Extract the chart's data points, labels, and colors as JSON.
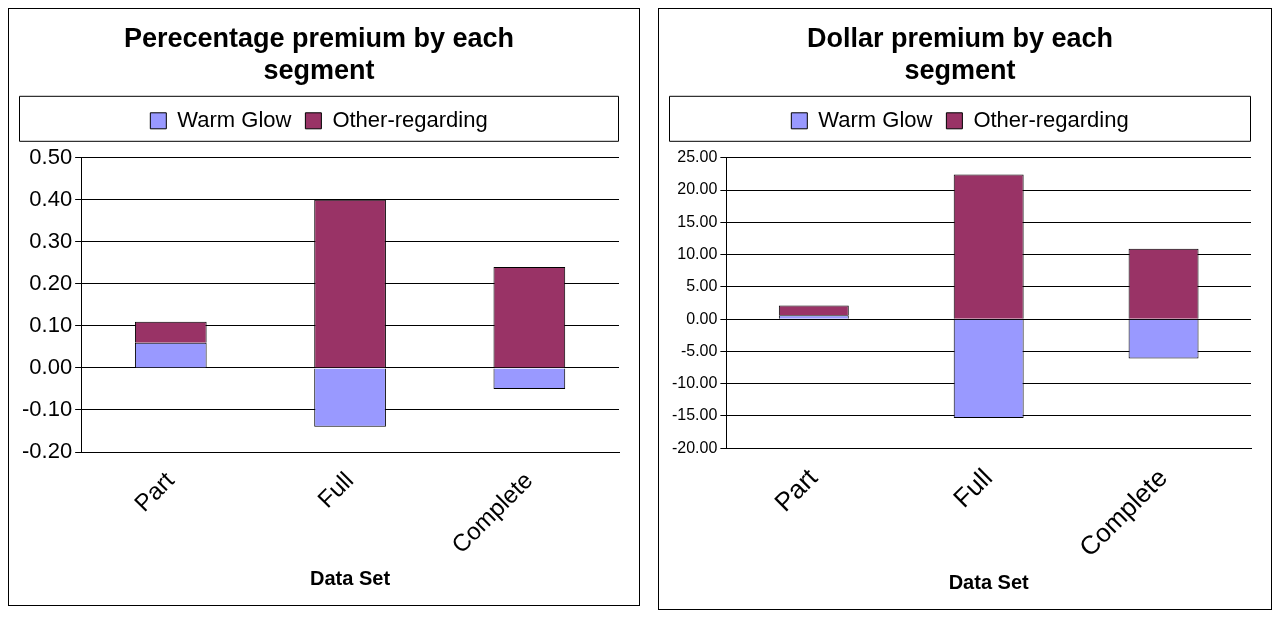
{
  "chart_data": [
    {
      "type": "bar",
      "title": "Perecentage premium by each segment",
      "xlabel": "Data Set",
      "categories": [
        "Part",
        "Full",
        "Complete"
      ],
      "stacked": true,
      "legend": "top",
      "grid": "y",
      "series": [
        {
          "name": "Warm Glow",
          "color": "#9999ff",
          "values": [
            0.06,
            -0.14,
            -0.05
          ]
        },
        {
          "name": "Other-regarding",
          "color": "#993366",
          "values": [
            0.05,
            0.4,
            0.24
          ]
        }
      ],
      "ylim": [
        -0.2,
        0.5
      ],
      "yticks": [
        {
          "value": -0.2,
          "label": "-0.20"
        },
        {
          "value": -0.1,
          "label": "-0.10"
        },
        {
          "value": 0,
          "label": "0.00"
        },
        {
          "value": 0.1,
          "label": "0.10"
        },
        {
          "value": 0.2,
          "label": "0.20"
        },
        {
          "value": 0.3,
          "label": "0.30"
        },
        {
          "value": 0.4,
          "label": "0.40"
        },
        {
          "value": 0.5,
          "label": "0.50"
        }
      ]
    },
    {
      "type": "bar",
      "title": "Dollar premium by each segment",
      "xlabel": "Data Set",
      "categories": [
        "Part",
        "Full",
        "Complete"
      ],
      "stacked": true,
      "legend": "top",
      "grid": "y",
      "series": [
        {
          "name": "Warm Glow",
          "color": "#9999ff",
          "values": [
            0.6,
            -15.3,
            -6.1
          ]
        },
        {
          "name": "Other-regarding",
          "color": "#993366",
          "values": [
            1.5,
            22.4,
            10.9
          ]
        }
      ],
      "ylim": [
        -20,
        25
      ],
      "yticks": [
        {
          "value": -20,
          "label": "-20.00"
        },
        {
          "value": -15,
          "label": "-15.00"
        },
        {
          "value": -10,
          "label": "-10.00"
        },
        {
          "value": -5,
          "label": "-5.00"
        },
        {
          "value": 0,
          "label": "0.00"
        },
        {
          "value": 5,
          "label": "5.00"
        },
        {
          "value": 10,
          "label": "10.00"
        },
        {
          "value": 15,
          "label": "15.00"
        },
        {
          "value": 20,
          "label": "20.00"
        },
        {
          "value": 25,
          "label": "25.00"
        }
      ]
    }
  ]
}
